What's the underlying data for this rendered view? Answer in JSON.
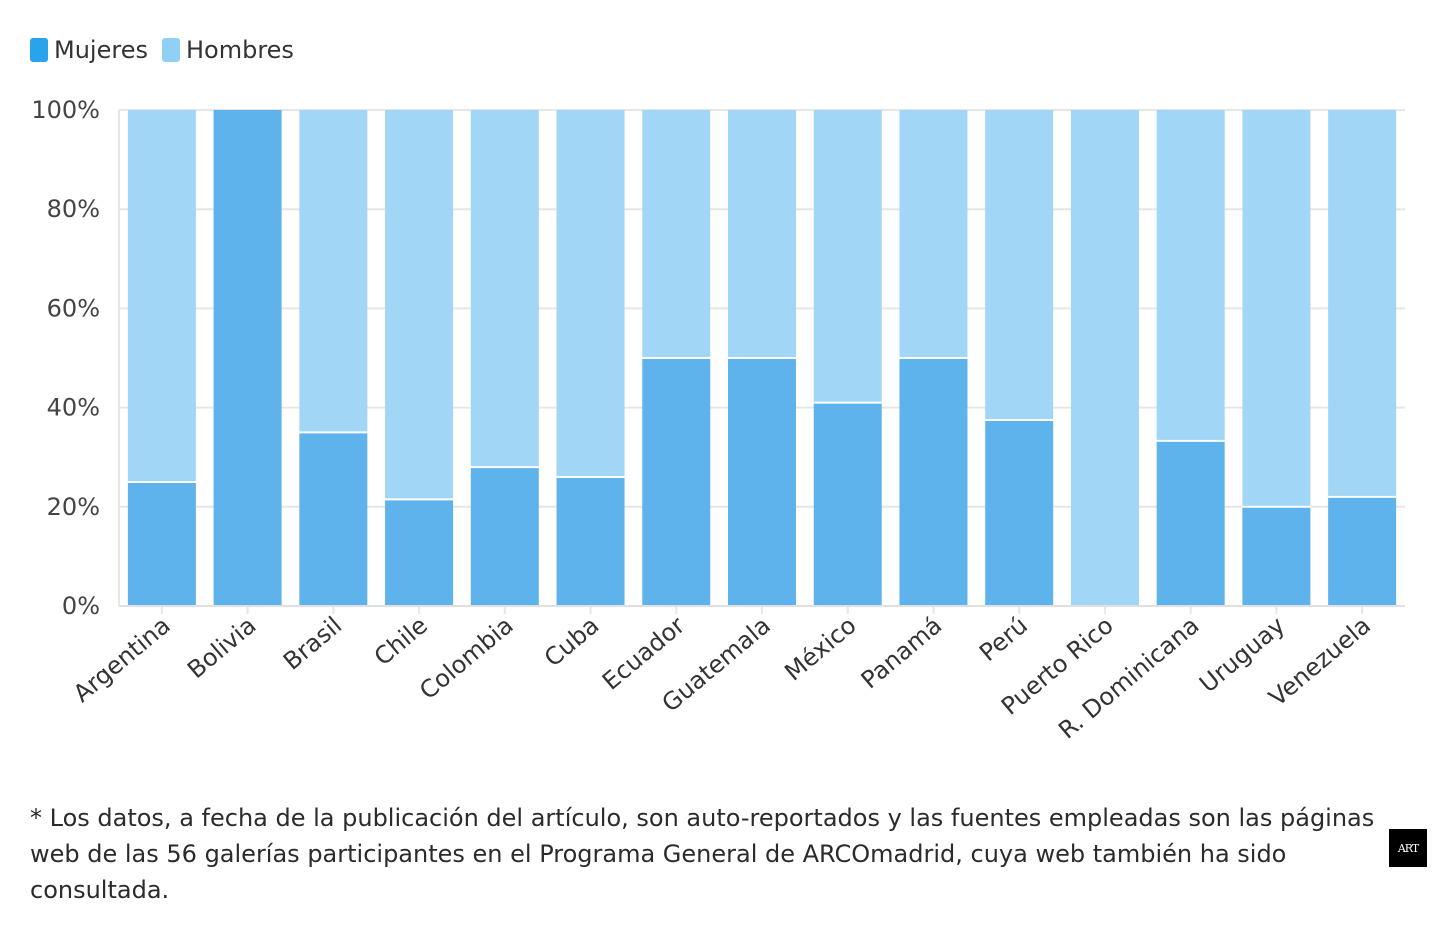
{
  "colors": {
    "mujeres": "#5fb3ec",
    "hombres": "#a1d6f6",
    "grid": "#e6e6e6",
    "logo_bg": "#000000"
  },
  "chart_data": {
    "type": "bar",
    "stacked": true,
    "title": "",
    "xlabel": "",
    "ylabel": "",
    "ylim": [
      0,
      100
    ],
    "yticks": [
      0,
      20,
      40,
      60,
      80,
      100
    ],
    "ytick_labels": [
      "0%",
      "20%",
      "40%",
      "60%",
      "80%",
      "100%"
    ],
    "legend": "top-left",
    "categories": [
      "Argentina",
      "Bolivia",
      "Brasil",
      "Chile",
      "Colombia",
      "Cuba",
      "Ecuador",
      "Guatemala",
      "México",
      "Panamá",
      "Perú",
      "Puerto Rico",
      "R. Dominicana",
      "Uruguay",
      "Venezuela"
    ],
    "series": [
      {
        "name": "Mujeres",
        "values": [
          25,
          100,
          35,
          21.5,
          28,
          26,
          50,
          50,
          41,
          50,
          37.5,
          0,
          33.3,
          20,
          22
        ]
      },
      {
        "name": "Hombres",
        "values": [
          75,
          0,
          65,
          78.5,
          72,
          74,
          50,
          50,
          59,
          50,
          62.5,
          100,
          66.7,
          80,
          78
        ]
      }
    ]
  },
  "footnote": "* Los datos, a fecha de la publicación del artículo, son auto-reportados y las fuentes empleadas son las páginas web de las 56 galerías participantes en el Programa General de ARCOmadrid, cuya web también ha sido consultada.",
  "logo": {
    "text": "ART"
  }
}
